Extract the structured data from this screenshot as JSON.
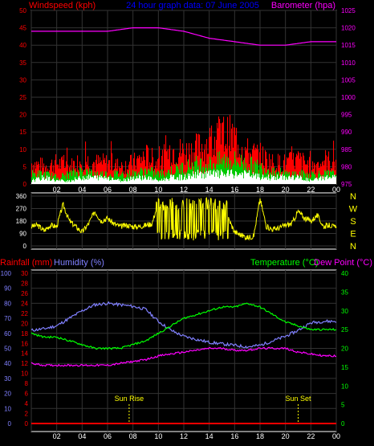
{
  "header": {
    "left": "Windspeed (kph)",
    "center": "24 hour graph data: 07 June 2005",
    "right": "Barometer (hpa)"
  },
  "colors": {
    "red": "#ff0000",
    "green": "#00c800",
    "white": "#ffffff",
    "magenta": "#ff00ff",
    "blue": "#0000ff",
    "yellow": "#ffff00",
    "periwinkle": "#8080ff",
    "lightgreen": "#00ff00",
    "grid": "#333333"
  },
  "chart_data": [
    {
      "type": "area",
      "id": "wind-baro",
      "left_axis": {
        "label": "Windspeed (kph)",
        "ylim": [
          0,
          50
        ],
        "ticks": [
          "0",
          "5",
          "10",
          "15",
          "20",
          "25",
          "30",
          "35",
          "40",
          "45",
          "50"
        ]
      },
      "right_axis": {
        "label": "Barometer (hpa)",
        "ylim": [
          975,
          1025
        ],
        "ticks": [
          "975",
          "980",
          "985",
          "990",
          "995",
          "1000",
          "1005",
          "1010",
          "1015",
          "1020",
          "1025"
        ]
      },
      "x_ticks": [
        "02",
        "04",
        "06",
        "08",
        "10",
        "12",
        "14",
        "16",
        "18",
        "20",
        "22",
        "00"
      ],
      "series": [
        {
          "name": "Windspeed (kph)",
          "color": "#ff0000",
          "x": [
            0,
            1,
            2,
            3,
            4,
            5,
            6,
            7,
            8,
            9,
            10,
            11,
            12,
            13,
            14,
            15,
            16,
            17,
            18,
            19,
            20,
            21,
            22,
            23,
            24
          ],
          "values": [
            6,
            5,
            6,
            5,
            7,
            6,
            6,
            5,
            6,
            8,
            6,
            10,
            9,
            10,
            12,
            14,
            13,
            9,
            8,
            6,
            6,
            7,
            5,
            7,
            6
          ]
        },
        {
          "name": "Average wind",
          "color": "#00c800",
          "x": [
            0,
            1,
            2,
            3,
            4,
            5,
            6,
            7,
            8,
            9,
            10,
            11,
            12,
            13,
            14,
            15,
            16,
            17,
            18,
            19,
            20,
            21,
            22,
            23,
            24
          ],
          "values": [
            3,
            3,
            2,
            3,
            4,
            3,
            3,
            3,
            3,
            4,
            3,
            4,
            5,
            6,
            6,
            7,
            7,
            6,
            5,
            4,
            3,
            3,
            3,
            3,
            3
          ]
        },
        {
          "name": "Gust",
          "color": "#ffffff",
          "x": [
            0,
            1,
            2,
            3,
            4,
            5,
            6,
            7,
            8,
            9,
            10,
            11,
            12,
            13,
            14,
            15,
            16,
            17,
            18,
            19,
            20,
            21,
            22,
            23,
            24
          ],
          "values": [
            1,
            2,
            1,
            1,
            2,
            2,
            2,
            1,
            2,
            2,
            1,
            2,
            2,
            3,
            3,
            3,
            3,
            3,
            2,
            2,
            2,
            2,
            1,
            2,
            2
          ]
        },
        {
          "name": "Barometer (hpa)",
          "color": "#ff00ff",
          "x": [
            0,
            2,
            4,
            6,
            8,
            10,
            12,
            14,
            16,
            18,
            20,
            22,
            24
          ],
          "values": [
            1019,
            1019,
            1019,
            1019,
            1020,
            1020,
            1019,
            1017,
            1016,
            1015,
            1015,
            1016,
            1016
          ]
        }
      ]
    },
    {
      "type": "line",
      "id": "wind-direction",
      "right_axis_labels": [
        "N",
        "W",
        "S",
        "E",
        "N"
      ],
      "left_axis": {
        "ylim": [
          0,
          360
        ],
        "ticks": [
          "0",
          "90",
          "180",
          "270",
          "360"
        ]
      },
      "series": [
        {
          "name": "Wind direction",
          "color": "#ffff00",
          "x": [
            0,
            0.5,
            1,
            1.5,
            2,
            2.5,
            3,
            3.5,
            4,
            4.5,
            5,
            5.5,
            6,
            6.5,
            7,
            7.5,
            8,
            8.5,
            9,
            9.5,
            10,
            10.5,
            11,
            11.5,
            12,
            12.5,
            13,
            13.5,
            14,
            14.5,
            15,
            15.5,
            16,
            16.5,
            17,
            17.5,
            18,
            18.5,
            19,
            19.5,
            20,
            20.5,
            21,
            21.5,
            22,
            22.5,
            23,
            23.5,
            24
          ],
          "values": [
            140,
            150,
            110,
            150,
            140,
            300,
            180,
            140,
            100,
            160,
            250,
            180,
            200,
            160,
            140,
            150,
            140,
            140,
            150,
            160,
            320,
            80,
            300,
            60,
            330,
            90,
            280,
            120,
            320,
            60,
            300,
            200,
            100,
            80,
            60,
            70,
            340,
            140,
            120,
            130,
            150,
            160,
            250,
            200,
            180,
            220,
            140,
            150,
            130
          ]
        }
      ]
    },
    {
      "type": "line",
      "id": "temp-humidity",
      "labels": {
        "rainfall": "Rainfall (mm)",
        "humidity": "Humidity (%)",
        "temperature": "Temperature (°C)",
        "dewpoint": "Dew Point (°C)"
      },
      "axes": {
        "humidity_ticks": [
          "0",
          "10",
          "20",
          "30",
          "40",
          "50",
          "60",
          "70",
          "80",
          "90",
          "100"
        ],
        "rain_ticks": [
          "0",
          "2",
          "4",
          "6",
          "8",
          "10",
          "12",
          "14",
          "16",
          "18",
          "20",
          "22",
          "24",
          "26",
          "28",
          "30"
        ],
        "temp_ticks": [
          "0",
          "5",
          "10",
          "15",
          "20",
          "25",
          "30",
          "35",
          "40"
        ]
      },
      "annotations": {
        "sunrise": "Sun Rise",
        "sunset": "Sun Set",
        "sunrise_hour": 7.7,
        "sunset_hour": 21.0
      },
      "x_ticks": [
        "02",
        "04",
        "06",
        "08",
        "10",
        "12",
        "14",
        "16",
        "18",
        "20",
        "22",
        "00"
      ],
      "series": [
        {
          "name": "Humidity (%)",
          "color": "#8080ff",
          "ylim": [
            0,
            100
          ],
          "x": [
            0,
            1,
            2,
            3,
            4,
            5,
            6,
            7,
            8,
            9,
            10,
            11,
            12,
            13,
            14,
            15,
            16,
            17,
            18,
            19,
            20,
            21,
            22,
            23,
            24
          ],
          "values": [
            62,
            63,
            65,
            70,
            75,
            79,
            80,
            79,
            78,
            76,
            68,
            62,
            58,
            56,
            54,
            53,
            52,
            51,
            52,
            55,
            58,
            62,
            67,
            68,
            68
          ]
        },
        {
          "name": "Temperature (°C)",
          "color": "#00ff00",
          "ylim": [
            0,
            40
          ],
          "x": [
            0,
            1,
            2,
            3,
            4,
            5,
            6,
            7,
            8,
            9,
            10,
            11,
            12,
            13,
            14,
            15,
            16,
            17,
            18,
            19,
            20,
            21,
            22,
            23,
            24
          ],
          "values": [
            24,
            23,
            23,
            22,
            21,
            20,
            20,
            20,
            21,
            22,
            24,
            26,
            28,
            29,
            30,
            31,
            31,
            32,
            31,
            29,
            27,
            26,
            25,
            25,
            25
          ]
        },
        {
          "name": "Dew Point (°C)",
          "color": "#ff00ff",
          "ylim": [
            0,
            40
          ],
          "x": [
            0,
            1,
            2,
            3,
            4,
            5,
            6,
            7,
            8,
            9,
            10,
            11,
            12,
            13,
            14,
            15,
            16,
            17,
            18,
            19,
            20,
            21,
            22,
            23,
            24
          ],
          "values": [
            16,
            15.5,
            15.5,
            15.5,
            15.5,
            15.5,
            15.5,
            16,
            16.5,
            17,
            18,
            18.5,
            19,
            19.5,
            20,
            20,
            19.5,
            19.5,
            20,
            20,
            20,
            19,
            18.5,
            18,
            18
          ]
        },
        {
          "name": "Rainfall (mm)",
          "color": "#ff0000",
          "ylim": [
            0,
            30
          ],
          "x": [
            0,
            24
          ],
          "values": [
            0,
            0
          ]
        }
      ]
    }
  ]
}
